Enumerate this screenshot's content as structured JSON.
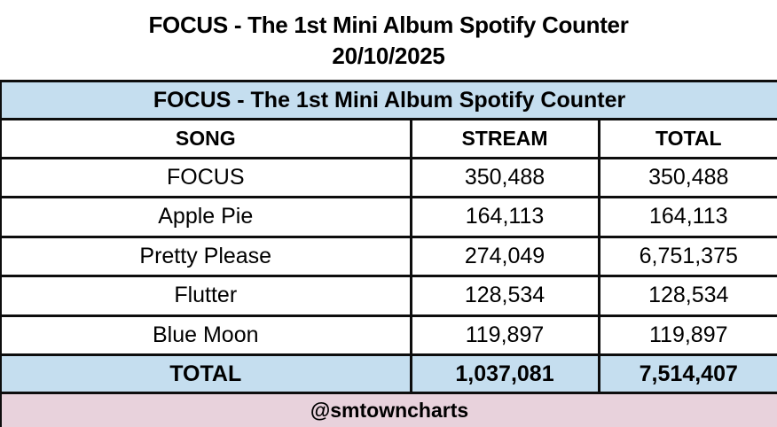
{
  "header": {
    "title": "FOCUS - The 1st Mini Album Spotify Counter",
    "date": "20/10/2025"
  },
  "table": {
    "banner": "FOCUS - The 1st Mini Album Spotify Counter",
    "columns": {
      "song": "SONG",
      "stream": "STREAM",
      "total": "TOTAL"
    },
    "rows": [
      {
        "song": "FOCUS",
        "stream": "350,488",
        "total": "350,488"
      },
      {
        "song": "Apple Pie",
        "stream": "164,113",
        "total": "164,113"
      },
      {
        "song": "Pretty Please",
        "stream": "274,049",
        "total": "6,751,375"
      },
      {
        "song": "Flutter",
        "stream": "128,534",
        "total": "128,534"
      },
      {
        "song": "Blue Moon",
        "stream": "119,897",
        "total": "119,897"
      }
    ],
    "total_row": {
      "label": "TOTAL",
      "stream": "1,037,081",
      "total": "7,514,407"
    },
    "footer": "@smtowncharts"
  },
  "colors": {
    "banner_bg": "#c5deef",
    "total_bg": "#c5deef",
    "footer_bg": "#e8d2dc",
    "border": "#0d0d0d",
    "text": "#000000"
  },
  "chart_data": {
    "type": "table",
    "title": "FOCUS - The 1st Mini Album Spotify Counter",
    "subtitle": "20/10/2025",
    "columns": [
      "SONG",
      "STREAM",
      "TOTAL"
    ],
    "rows": [
      [
        "FOCUS",
        350488,
        350488
      ],
      [
        "Apple Pie",
        164113,
        164113
      ],
      [
        "Pretty Please",
        274049,
        6751375
      ],
      [
        "Flutter",
        128534,
        128534
      ],
      [
        "Blue Moon",
        119897,
        119897
      ]
    ],
    "total": [
      "TOTAL",
      1037081,
      7514407
    ],
    "credit": "@smtowncharts"
  }
}
